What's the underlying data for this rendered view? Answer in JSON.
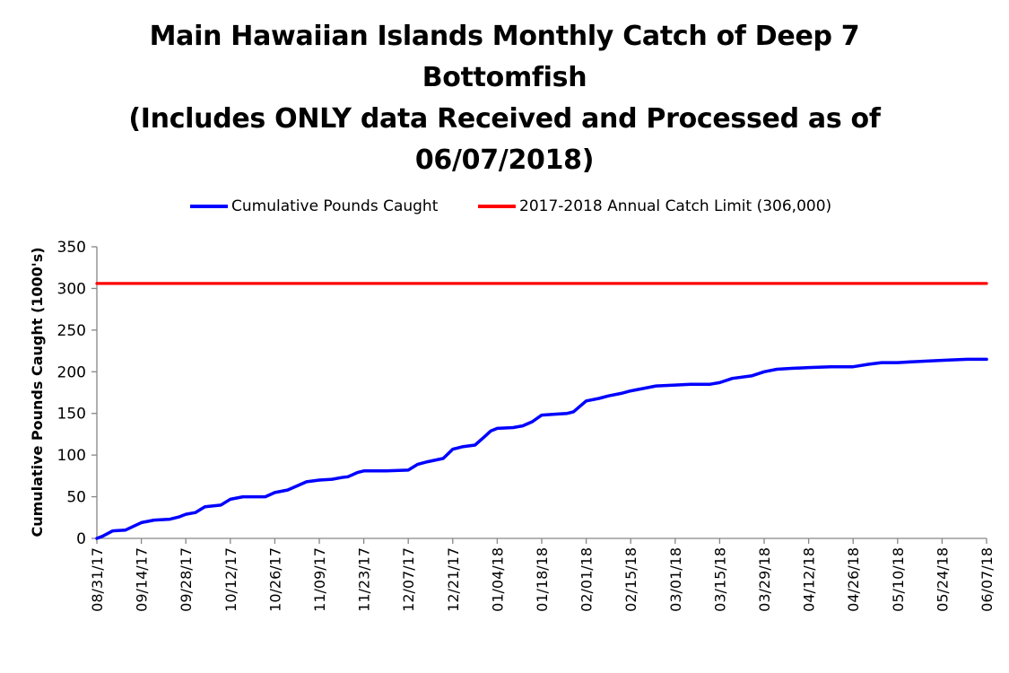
{
  "chart_data": {
    "type": "line",
    "title_lines": [
      "Main Hawaiian Islands Monthly Catch of Deep 7",
      "Bottomfish",
      "(Includes ONLY data Received and Processed as of",
      "06/07/2018)"
    ],
    "ylabel": "Cumulative Pounds Caught (1000's)",
    "ylim": [
      0,
      350
    ],
    "y_ticks": [
      0,
      50,
      100,
      150,
      200,
      250,
      300,
      350
    ],
    "x_range": [
      "08/31/17",
      "06/07/18"
    ],
    "x_ticks": [
      "08/31/17",
      "09/14/17",
      "09/28/17",
      "10/12/17",
      "10/26/17",
      "11/09/17",
      "11/23/17",
      "12/07/17",
      "12/21/17",
      "01/04/18",
      "01/18/18",
      "02/01/18",
      "02/15/18",
      "03/01/18",
      "03/15/18",
      "03/29/18",
      "04/12/18",
      "04/26/18",
      "05/10/18",
      "05/24/18",
      "06/07/18"
    ],
    "grid": false,
    "legend_position": "top",
    "series": [
      {
        "name": "Cumulative Pounds Caught",
        "color": "#0000FF",
        "points": [
          [
            "08/31/17",
            0
          ],
          [
            "09/02/17",
            3
          ],
          [
            "09/05/17",
            9
          ],
          [
            "09/09/17",
            10
          ],
          [
            "09/14/17",
            19
          ],
          [
            "09/18/17",
            22
          ],
          [
            "09/23/17",
            23
          ],
          [
            "09/26/17",
            26
          ],
          [
            "09/28/17",
            29
          ],
          [
            "10/01/17",
            31
          ],
          [
            "10/04/17",
            38
          ],
          [
            "10/09/17",
            40
          ],
          [
            "10/12/17",
            47
          ],
          [
            "10/16/17",
            50
          ],
          [
            "10/23/17",
            50
          ],
          [
            "10/26/17",
            55
          ],
          [
            "10/30/17",
            58
          ],
          [
            "11/02/17",
            63
          ],
          [
            "11/05/17",
            68
          ],
          [
            "11/09/17",
            70
          ],
          [
            "11/13/17",
            71
          ],
          [
            "11/16/17",
            73
          ],
          [
            "11/18/17",
            74
          ],
          [
            "11/21/17",
            79
          ],
          [
            "11/23/17",
            81
          ],
          [
            "11/30/17",
            81
          ],
          [
            "12/07/17",
            82
          ],
          [
            "12/10/17",
            89
          ],
          [
            "12/13/17",
            92
          ],
          [
            "12/18/17",
            96
          ],
          [
            "12/21/17",
            107
          ],
          [
            "12/24/17",
            110
          ],
          [
            "12/28/17",
            112
          ],
          [
            "12/31/17",
            122
          ],
          [
            "01/02/18",
            129
          ],
          [
            "01/04/18",
            132
          ],
          [
            "01/09/18",
            133
          ],
          [
            "01/12/18",
            135
          ],
          [
            "01/15/18",
            140
          ],
          [
            "01/18/18",
            148
          ],
          [
            "01/22/18",
            149
          ],
          [
            "01/26/18",
            150
          ],
          [
            "01/28/18",
            152
          ],
          [
            "02/01/18",
            165
          ],
          [
            "02/05/18",
            168
          ],
          [
            "02/08/18",
            171
          ],
          [
            "02/12/18",
            174
          ],
          [
            "02/15/18",
            177
          ],
          [
            "02/19/18",
            180
          ],
          [
            "02/23/18",
            183
          ],
          [
            "03/01/18",
            184
          ],
          [
            "03/06/18",
            185
          ],
          [
            "03/12/18",
            185
          ],
          [
            "03/15/18",
            187
          ],
          [
            "03/19/18",
            192
          ],
          [
            "03/25/18",
            195
          ],
          [
            "03/29/18",
            200
          ],
          [
            "04/02/18",
            203
          ],
          [
            "04/06/18",
            204
          ],
          [
            "04/12/18",
            205
          ],
          [
            "04/19/18",
            206
          ],
          [
            "04/26/18",
            206
          ],
          [
            "05/01/18",
            209
          ],
          [
            "05/05/18",
            211
          ],
          [
            "05/10/18",
            211
          ],
          [
            "05/15/18",
            212
          ],
          [
            "05/20/18",
            213
          ],
          [
            "05/26/18",
            214
          ],
          [
            "06/01/18",
            215
          ],
          [
            "06/07/18",
            215
          ]
        ]
      },
      {
        "name": "2017-2018 Annual Catch Limit (306,000)",
        "color": "#FF0000",
        "points": [
          [
            "08/31/17",
            306
          ],
          [
            "06/07/18",
            306
          ]
        ]
      }
    ]
  }
}
